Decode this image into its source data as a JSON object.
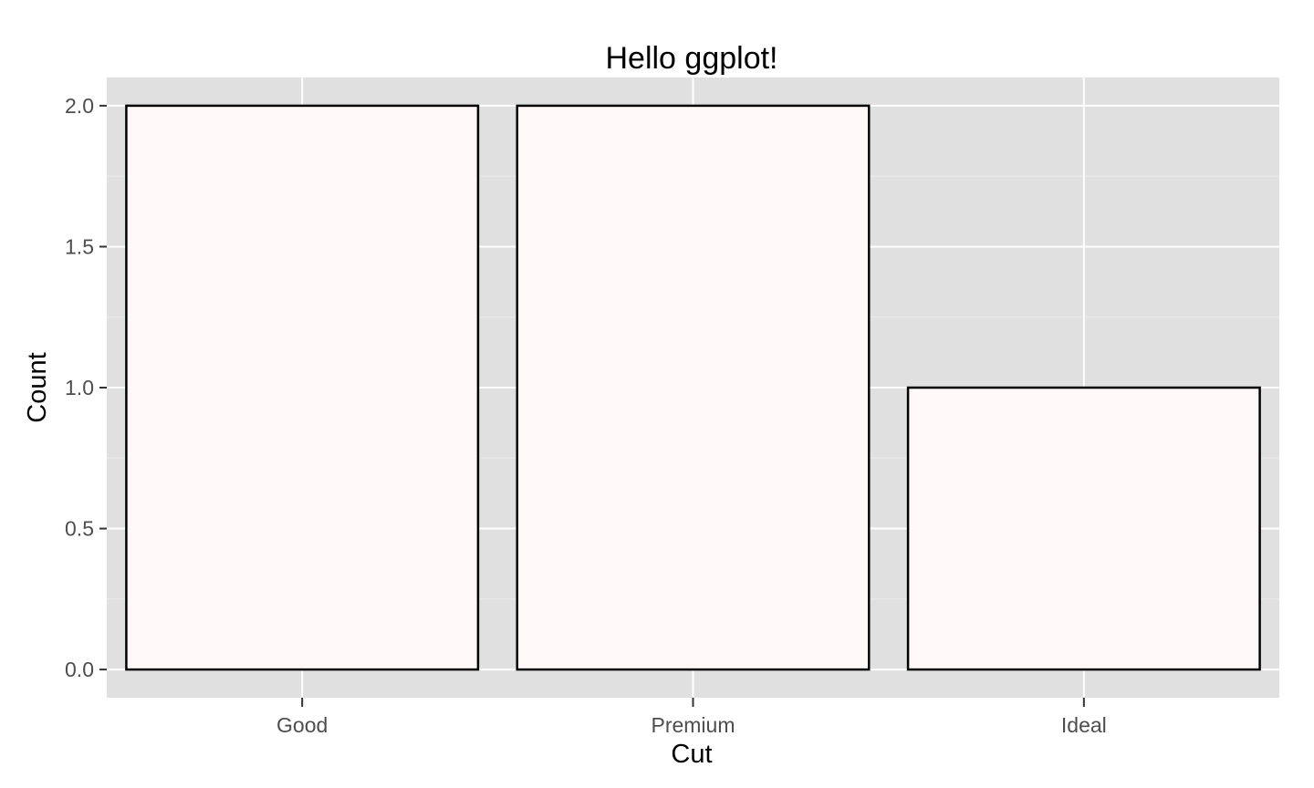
{
  "chart_data": {
    "type": "bar",
    "title": "Hello ggplot!",
    "xlabel": "Cut",
    "ylabel": "Count",
    "categories": [
      "Good",
      "Premium",
      "Ideal"
    ],
    "values": [
      2,
      2,
      1
    ],
    "ylim": [
      -0.1,
      2.1
    ],
    "yticks": [
      0,
      0.5,
      1,
      1.5,
      2
    ],
    "ytick_labels": [
      "0.0",
      "0.5",
      "1.0",
      "1.5",
      "2.0"
    ],
    "grid": true,
    "legend": "none",
    "colors": {
      "panel_background": "#e0e0e0",
      "grid_major": "#ffffff",
      "grid_minor": "#ebebeb",
      "bar_fill": "#fff8f8",
      "bar_outline": "#000000",
      "tick_text": "#4d4d4d"
    }
  }
}
